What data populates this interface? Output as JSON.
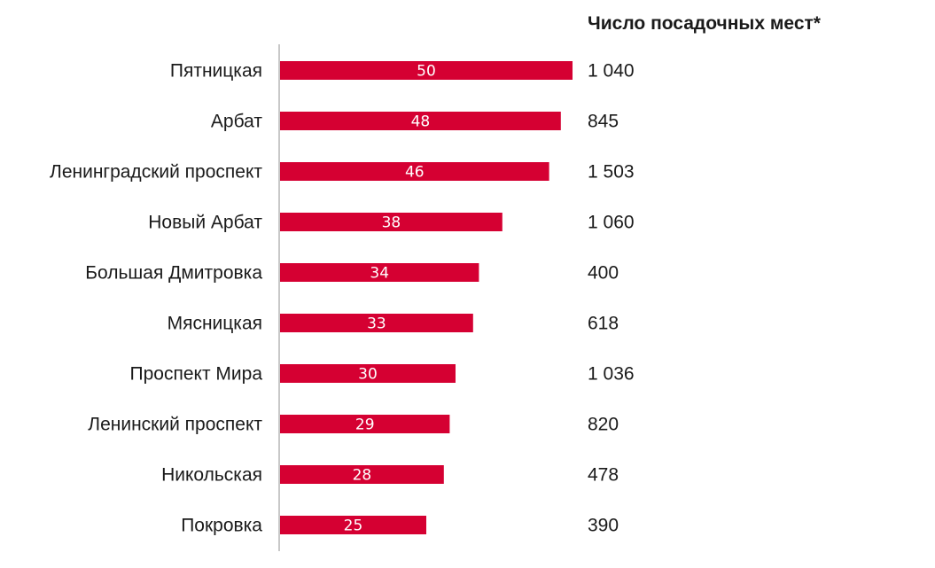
{
  "chart_data": {
    "type": "bar",
    "orientation": "horizontal",
    "categories": [
      "Пятницкая",
      "Арбат",
      "Ленинградский проспект",
      "Новый Арбат",
      "Большая Дмитровка",
      "Мясницкая",
      "Проспект Мира",
      "Ленинский проспект",
      "Никольская",
      "Покровка"
    ],
    "values": [
      50,
      48,
      46,
      38,
      34,
      33,
      30,
      29,
      28,
      25
    ],
    "data_labels": [
      "50",
      "48",
      "46",
      "38",
      "34",
      "33",
      "30",
      "29",
      "28",
      "25"
    ],
    "side_column": {
      "header": "Число посадочных мест*",
      "values": [
        "1 040",
        "845",
        "1 503",
        "1 060",
        "400",
        "618",
        "1 036",
        "820",
        "478",
        "390"
      ]
    },
    "xlim": [
      0,
      50
    ],
    "grid": false,
    "legend": "none",
    "colors": {
      "bar": "#d50032",
      "axis": "#c8c8c8"
    }
  }
}
